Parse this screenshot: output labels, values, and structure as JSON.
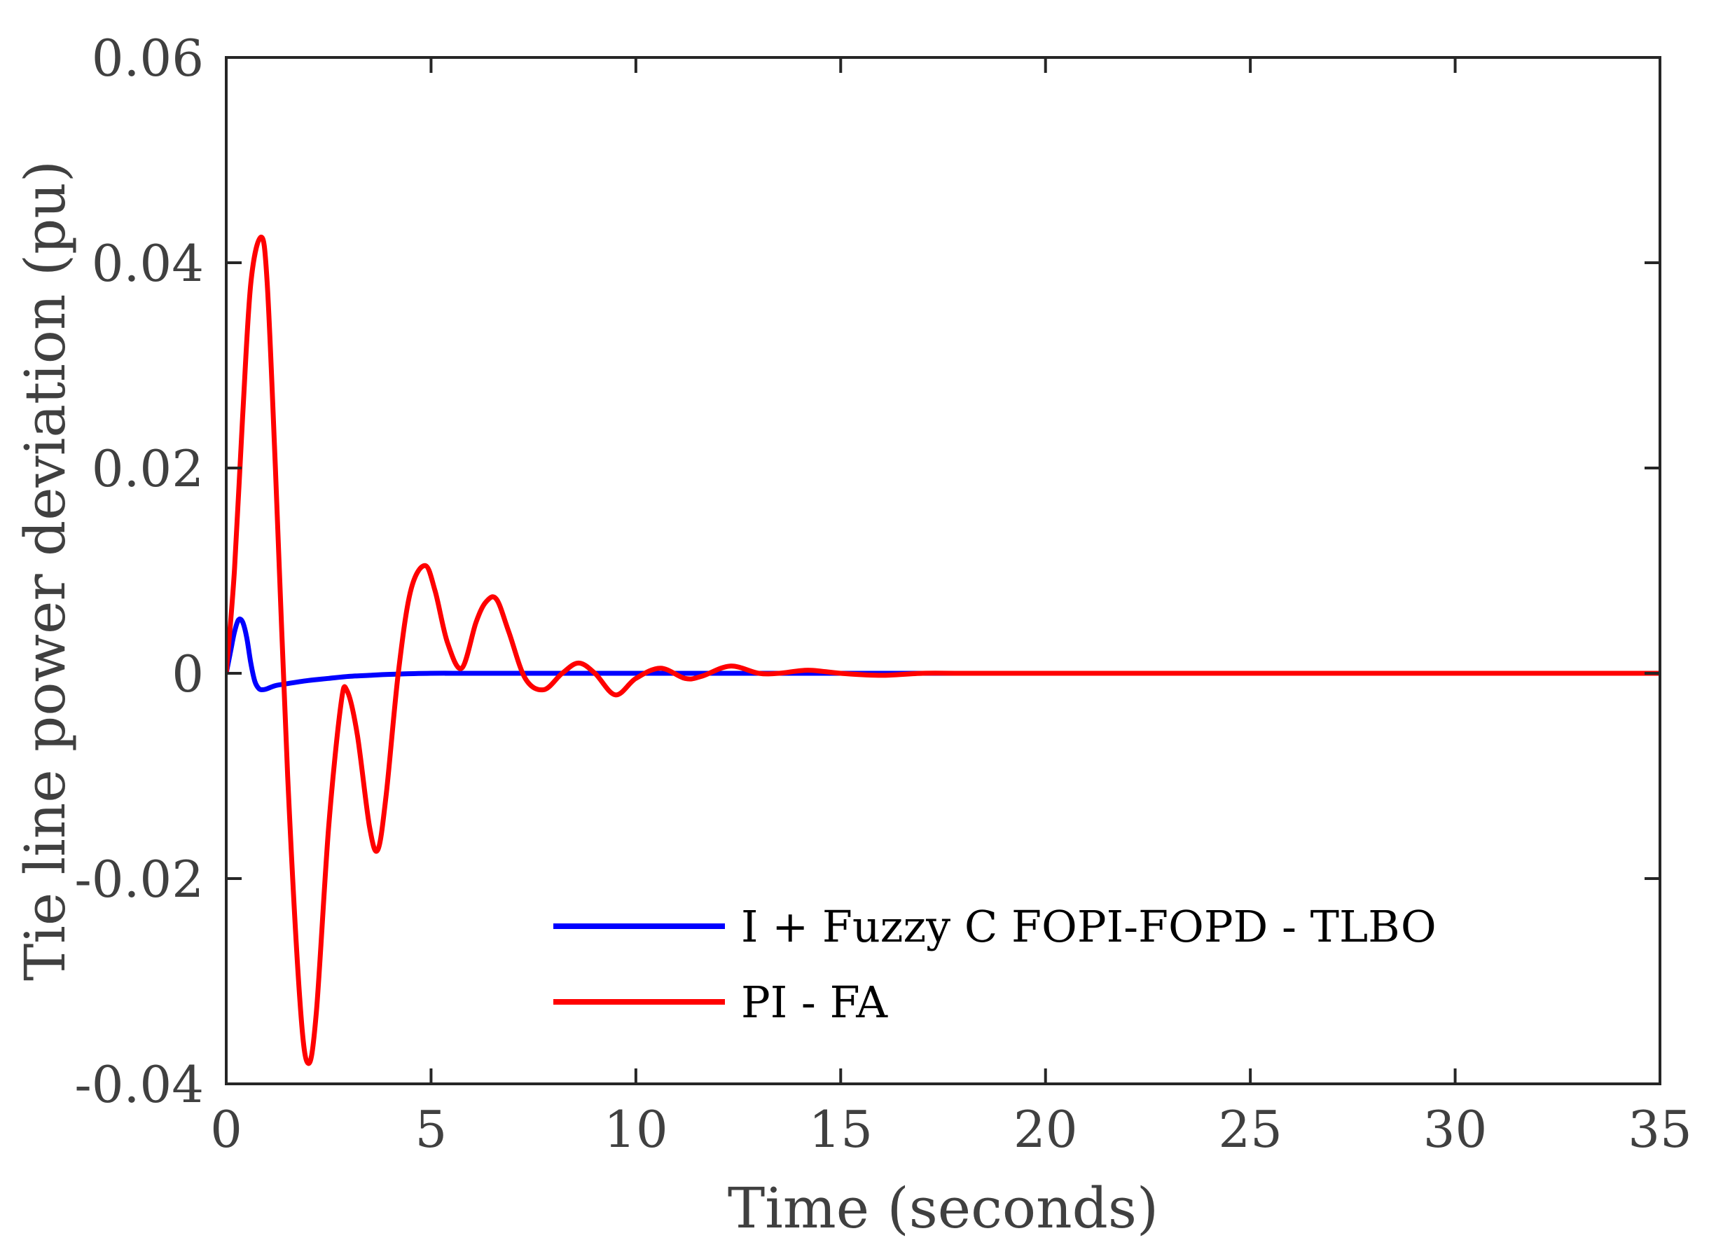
{
  "chart_data": {
    "type": "line",
    "title": "",
    "xlabel": "Time (seconds)",
    "ylabel": "Tie line power deviation (pu)",
    "xlim": [
      0,
      35
    ],
    "ylim": [
      -0.04,
      0.06
    ],
    "x_ticks": [
      0,
      5,
      10,
      15,
      20,
      25,
      30,
      35
    ],
    "y_ticks": [
      -0.04,
      -0.02,
      0,
      0.02,
      0.04,
      0.06
    ],
    "x_tick_labels": [
      "0",
      "5",
      "10",
      "15",
      "20",
      "25",
      "30",
      "35"
    ],
    "y_tick_labels": [
      "-0.04",
      "-0.02",
      "0",
      "0.02",
      "0.04",
      "0.06"
    ],
    "grid": false,
    "legend_position": "bottom-center",
    "series": [
      {
        "name": "I + Fuzzy C FOPI-FOPD - TLBO",
        "color": "#0000ff",
        "x": [
          0,
          0.1,
          0.2,
          0.3,
          0.4,
          0.5,
          0.6,
          0.7,
          0.8,
          0.9,
          1.0,
          1.2,
          1.5,
          2.0,
          2.5,
          3.0,
          3.5,
          4.0,
          5.0,
          6.0,
          8.0,
          35
        ],
        "y": [
          0,
          0.002,
          0.004,
          0.0052,
          0.005,
          0.0035,
          0.001,
          -0.0008,
          -0.0015,
          -0.0016,
          -0.0015,
          -0.0012,
          -0.001,
          -0.0007,
          -0.0005,
          -0.0003,
          -0.0002,
          -0.0001,
          0,
          0,
          0,
          0
        ]
      },
      {
        "name": "PI - FA",
        "color": "#ff0000",
        "x": [
          0,
          0.2,
          0.4,
          0.6,
          0.85,
          1.0,
          1.2,
          1.5,
          1.8,
          2.0,
          2.2,
          2.5,
          2.8,
          2.95,
          3.2,
          3.5,
          3.7,
          3.9,
          4.2,
          4.5,
          4.85,
          5.1,
          5.4,
          5.75,
          6.1,
          6.35,
          6.6,
          6.9,
          7.3,
          7.75,
          8.2,
          8.6,
          9.0,
          9.5,
          10.0,
          10.6,
          11.2,
          11.6,
          12.3,
          13.0,
          13.5,
          14.2,
          15.0,
          16.0,
          17.0,
          18.0,
          20.0,
          35
        ],
        "y": [
          0,
          0.01,
          0.025,
          0.038,
          0.0425,
          0.038,
          0.02,
          -0.01,
          -0.032,
          -0.038,
          -0.033,
          -0.015,
          -0.003,
          -0.0017,
          -0.006,
          -0.015,
          -0.0172,
          -0.012,
          0,
          0.008,
          0.0105,
          0.008,
          0.003,
          0.0005,
          0.005,
          0.007,
          0.0072,
          0.004,
          -0.0005,
          -0.0016,
          0,
          0.001,
          0,
          -0.0021,
          -0.0005,
          0.0005,
          -0.0005,
          -0.0003,
          0.0007,
          0,
          0,
          0.0003,
          0,
          -0.0002,
          0,
          0,
          0,
          0
        ]
      }
    ]
  }
}
